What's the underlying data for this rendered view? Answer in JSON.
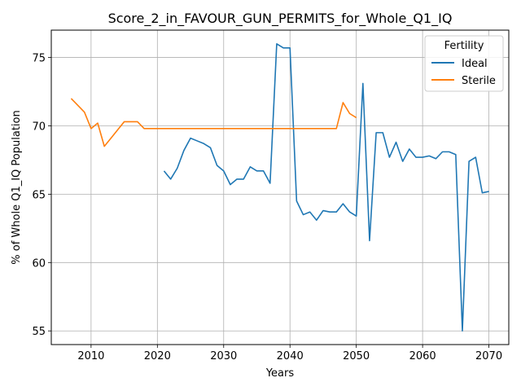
{
  "chart_data": {
    "type": "line",
    "title": "Score_2_in_FAVOUR_GUN_PERMITS_for_Whole_Q1_IQ",
    "xlabel": "Years",
    "ylabel": "% of Whole Q1_IQ Population",
    "xlim": [
      2004,
      2073
    ],
    "ylim": [
      54,
      77
    ],
    "xticks": [
      2010,
      2020,
      2030,
      2040,
      2050,
      2060,
      2070
    ],
    "yticks": [
      55,
      60,
      65,
      70,
      75
    ],
    "xtick_labels": [
      "2010",
      "2020",
      "2030",
      "2040",
      "2050",
      "2060",
      "2070"
    ],
    "ytick_labels": [
      "55",
      "60",
      "65",
      "70",
      "75"
    ],
    "grid": true,
    "legend": {
      "title": "Fertility",
      "position": "top-right"
    },
    "series": [
      {
        "name": "Ideal",
        "color": "#1f77b4",
        "x": [
          2021,
          2022,
          2023,
          2024,
          2025,
          2026,
          2027,
          2028,
          2029,
          2030,
          2031,
          2032,
          2033,
          2034,
          2035,
          2036,
          2037,
          2038,
          2039,
          2040,
          2041,
          2042,
          2043,
          2044,
          2045,
          2046,
          2047,
          2048,
          2049,
          2050,
          2051,
          2052,
          2053,
          2054,
          2055,
          2056,
          2057,
          2058,
          2059,
          2060,
          2061,
          2062,
          2063,
          2064,
          2065,
          2066,
          2067,
          2068,
          2069,
          2070
        ],
        "y": [
          66.7,
          66.1,
          66.9,
          68.2,
          69.1,
          68.9,
          68.7,
          68.4,
          67.1,
          66.7,
          65.7,
          66.1,
          66.1,
          67.0,
          66.7,
          66.7,
          65.8,
          76.0,
          75.7,
          75.7,
          64.5,
          63.5,
          63.7,
          63.1,
          63.8,
          63.7,
          63.7,
          64.3,
          63.7,
          63.4,
          73.1,
          61.6,
          69.5,
          69.5,
          67.7,
          68.8,
          67.4,
          68.3,
          67.7,
          67.7,
          67.8,
          67.6,
          68.1,
          68.1,
          67.9,
          55.0,
          67.4,
          67.7,
          65.1,
          65.2
        ]
      },
      {
        "name": "Sterile",
        "color": "#ff7f0e",
        "x": [
          2007,
          2008,
          2009,
          2010,
          2011,
          2012,
          2013,
          2014,
          2015,
          2016,
          2017,
          2018,
          2019,
          2020,
          2021,
          2022,
          2023,
          2024,
          2025,
          2026,
          2027,
          2028,
          2029,
          2030,
          2031,
          2032,
          2033,
          2034,
          2035,
          2036,
          2037,
          2038,
          2039,
          2040,
          2041,
          2042,
          2043,
          2044,
          2045,
          2046,
          2047,
          2048,
          2049,
          2050
        ],
        "y": [
          72.0,
          71.5,
          71.0,
          69.8,
          70.2,
          68.5,
          69.1,
          69.7,
          70.3,
          70.3,
          70.3,
          69.8,
          69.8,
          69.8,
          69.8,
          69.8,
          69.8,
          69.8,
          69.8,
          69.8,
          69.8,
          69.8,
          69.8,
          69.8,
          69.8,
          69.8,
          69.8,
          69.8,
          69.8,
          69.8,
          69.8,
          69.8,
          69.8,
          69.8,
          69.8,
          69.8,
          69.8,
          69.8,
          69.8,
          69.8,
          69.8,
          71.7,
          70.9,
          70.6
        ]
      }
    ]
  }
}
